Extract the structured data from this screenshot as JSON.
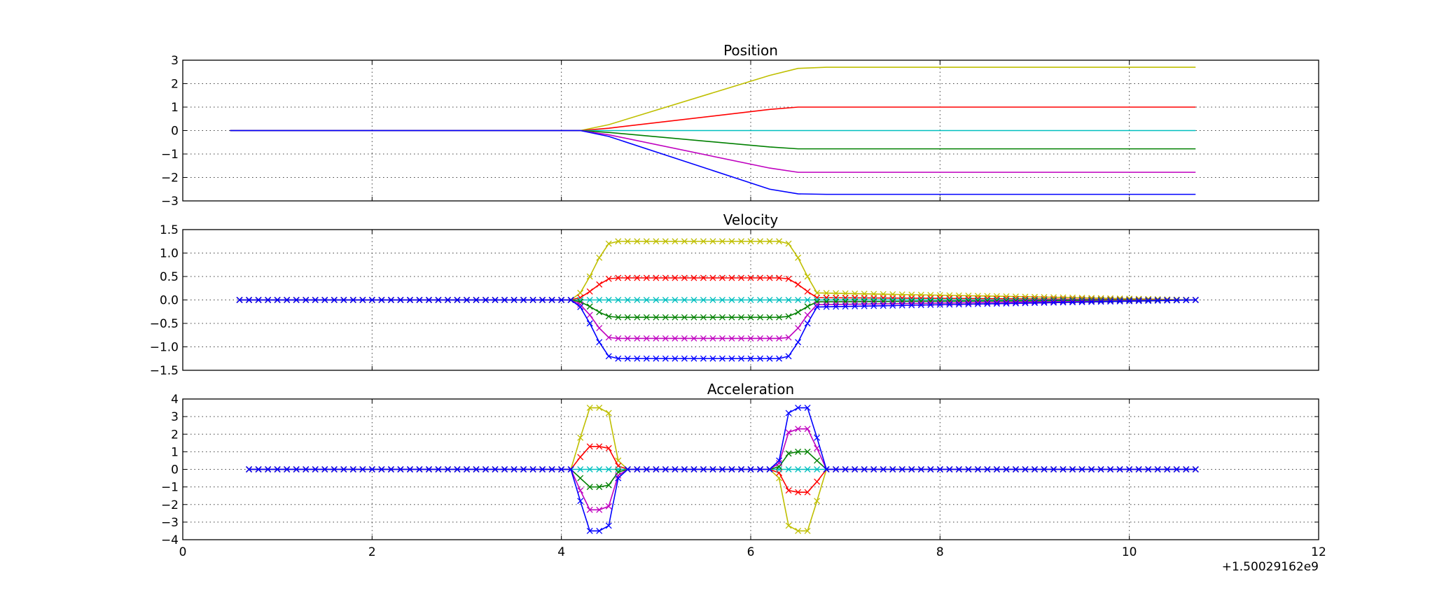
{
  "chart_data": [
    {
      "type": "line",
      "title": "Position",
      "xlim": [
        0,
        12
      ],
      "ylim": [
        -3,
        3
      ],
      "yticks": [
        -3,
        -2,
        -1,
        0,
        1,
        2,
        3
      ],
      "ytick_labels": [
        "−3",
        "−2",
        "−1",
        "0",
        "1",
        "2",
        "3"
      ],
      "grid": true,
      "markers": false,
      "series": [
        {
          "color": "#bfbf00",
          "x": [
            0.5,
            4.0,
            4.2,
            4.5,
            6.2,
            6.5,
            6.8,
            10.7
          ],
          "y": [
            0,
            0,
            0,
            0.25,
            2.35,
            2.65,
            2.7,
            2.7
          ]
        },
        {
          "color": "#ff0000",
          "x": [
            0.5,
            4.0,
            4.2,
            4.5,
            6.2,
            6.5,
            6.8,
            10.7
          ],
          "y": [
            0,
            0,
            0,
            0.1,
            0.9,
            1.0,
            1.0,
            1.0
          ]
        },
        {
          "color": "#00bfbf",
          "x": [
            0.5,
            10.7
          ],
          "y": [
            0,
            0
          ]
        },
        {
          "color": "#008000",
          "x": [
            0.5,
            4.0,
            4.2,
            4.5,
            6.2,
            6.5,
            6.8,
            10.7
          ],
          "y": [
            0,
            0,
            0,
            -0.08,
            -0.7,
            -0.78,
            -0.78,
            -0.78
          ]
        },
        {
          "color": "#bf00bf",
          "x": [
            0.5,
            4.0,
            4.2,
            4.5,
            6.2,
            6.5,
            6.8,
            10.7
          ],
          "y": [
            0,
            0,
            0,
            -0.18,
            -1.6,
            -1.78,
            -1.78,
            -1.78
          ]
        },
        {
          "color": "#0000ff",
          "x": [
            0.5,
            4.0,
            4.2,
            4.5,
            6.2,
            6.5,
            6.8,
            10.7
          ],
          "y": [
            0,
            0,
            0,
            -0.25,
            -2.5,
            -2.7,
            -2.72,
            -2.72
          ]
        }
      ]
    },
    {
      "type": "line",
      "title": "Velocity",
      "xlim": [
        0,
        12
      ],
      "ylim": [
        -1.5,
        1.5
      ],
      "yticks": [
        -1.5,
        -1.0,
        -0.5,
        0.0,
        0.5,
        1.0,
        1.5
      ],
      "ytick_labels": [
        "−1.5",
        "−1.0",
        "−0.5",
        "0.0",
        "0.5",
        "1.0",
        "1.5"
      ],
      "grid": true,
      "markers": true,
      "marker_step": 0.1,
      "series": [
        {
          "color": "#bfbf00",
          "x": [
            0.6,
            4.1,
            4.2,
            4.3,
            4.4,
            4.5,
            4.6,
            6.3,
            6.4,
            6.5,
            6.6,
            6.7,
            10.7
          ],
          "y": [
            0,
            0,
            0.15,
            0.5,
            0.9,
            1.2,
            1.25,
            1.25,
            1.2,
            0.9,
            0.5,
            0.15,
            0
          ]
        },
        {
          "color": "#ff0000",
          "x": [
            0.6,
            4.1,
            4.2,
            4.3,
            4.4,
            4.5,
            4.6,
            6.3,
            6.4,
            6.5,
            6.6,
            6.7,
            10.7
          ],
          "y": [
            0,
            0,
            0.05,
            0.18,
            0.33,
            0.45,
            0.47,
            0.47,
            0.45,
            0.33,
            0.18,
            0.05,
            0
          ]
        },
        {
          "color": "#00bfbf",
          "x": [
            0.6,
            10.7
          ],
          "y": [
            0,
            0
          ]
        },
        {
          "color": "#008000",
          "x": [
            0.6,
            4.1,
            4.2,
            4.3,
            4.4,
            4.5,
            4.6,
            6.3,
            6.4,
            6.5,
            6.6,
            6.7,
            10.7
          ],
          "y": [
            0,
            0,
            -0.04,
            -0.14,
            -0.26,
            -0.35,
            -0.37,
            -0.37,
            -0.35,
            -0.26,
            -0.14,
            -0.04,
            0
          ]
        },
        {
          "color": "#bf00bf",
          "x": [
            0.6,
            4.1,
            4.2,
            4.3,
            4.4,
            4.5,
            4.6,
            6.3,
            6.4,
            6.5,
            6.6,
            6.7,
            10.7
          ],
          "y": [
            0,
            0,
            -0.1,
            -0.32,
            -0.6,
            -0.8,
            -0.82,
            -0.82,
            -0.8,
            -0.6,
            -0.32,
            -0.1,
            0
          ]
        },
        {
          "color": "#0000ff",
          "x": [
            0.6,
            4.1,
            4.2,
            4.3,
            4.4,
            4.5,
            4.6,
            6.3,
            6.4,
            6.5,
            6.6,
            6.7,
            10.7
          ],
          "y": [
            0,
            0,
            -0.15,
            -0.5,
            -0.9,
            -1.2,
            -1.25,
            -1.25,
            -1.2,
            -0.9,
            -0.5,
            -0.15,
            0
          ]
        }
      ]
    },
    {
      "type": "line",
      "title": "Acceleration",
      "xlim": [
        0,
        12
      ],
      "ylim": [
        -4,
        4
      ],
      "yticks": [
        -4,
        -3,
        -2,
        -1,
        0,
        1,
        2,
        3,
        4
      ],
      "ytick_labels": [
        "−4",
        "−3",
        "−2",
        "−1",
        "0",
        "1",
        "2",
        "3",
        "4"
      ],
      "xticks": [
        0,
        2,
        4,
        6,
        8,
        10,
        12
      ],
      "xtick_labels": [
        "0",
        "2",
        "4",
        "6",
        "8",
        "10",
        "12"
      ],
      "x_offset_label": "+1.50029162e9",
      "grid": true,
      "markers": true,
      "marker_step": 0.1,
      "series": [
        {
          "color": "#bfbf00",
          "x": [
            0.7,
            4.1,
            4.2,
            4.3,
            4.4,
            4.5,
            4.6,
            4.7,
            6.2,
            6.3,
            6.4,
            6.5,
            6.6,
            6.7,
            6.8,
            10.7
          ],
          "y": [
            0,
            0,
            1.8,
            3.5,
            3.5,
            3.2,
            0.5,
            0,
            0,
            -0.5,
            -3.2,
            -3.5,
            -3.5,
            -1.8,
            0,
            0
          ]
        },
        {
          "color": "#ff0000",
          "x": [
            0.7,
            4.1,
            4.2,
            4.3,
            4.4,
            4.5,
            4.6,
            4.7,
            6.2,
            6.3,
            6.4,
            6.5,
            6.6,
            6.7,
            6.8,
            10.7
          ],
          "y": [
            0,
            0,
            0.7,
            1.3,
            1.3,
            1.2,
            0.2,
            0,
            0,
            -0.2,
            -1.2,
            -1.3,
            -1.3,
            -0.7,
            0,
            0
          ]
        },
        {
          "color": "#00bfbf",
          "x": [
            0.7,
            10.7
          ],
          "y": [
            0,
            0
          ]
        },
        {
          "color": "#008000",
          "x": [
            0.7,
            4.1,
            4.2,
            4.3,
            4.4,
            4.5,
            4.6,
            4.7,
            6.2,
            6.3,
            6.4,
            6.5,
            6.6,
            6.7,
            6.8,
            10.7
          ],
          "y": [
            0,
            0,
            -0.5,
            -1.0,
            -1.0,
            -0.9,
            -0.15,
            0,
            0,
            0.15,
            0.9,
            1.0,
            1.0,
            0.5,
            0,
            0
          ]
        },
        {
          "color": "#bf00bf",
          "x": [
            0.7,
            4.1,
            4.2,
            4.3,
            4.4,
            4.5,
            4.6,
            4.7,
            6.2,
            6.3,
            6.4,
            6.5,
            6.6,
            6.7,
            6.8,
            10.7
          ],
          "y": [
            0,
            0,
            -1.2,
            -2.3,
            -2.3,
            -2.1,
            -0.35,
            0,
            0,
            0.35,
            2.1,
            2.3,
            2.3,
            1.2,
            0,
            0
          ]
        },
        {
          "color": "#0000ff",
          "x": [
            0.7,
            4.1,
            4.2,
            4.3,
            4.4,
            4.5,
            4.6,
            4.7,
            6.2,
            6.3,
            6.4,
            6.5,
            6.6,
            6.7,
            6.8,
            10.7
          ],
          "y": [
            0,
            0,
            -1.8,
            -3.5,
            -3.5,
            -3.2,
            -0.5,
            0,
            0,
            0.5,
            3.2,
            3.5,
            3.5,
            1.8,
            0,
            0
          ]
        }
      ]
    }
  ]
}
